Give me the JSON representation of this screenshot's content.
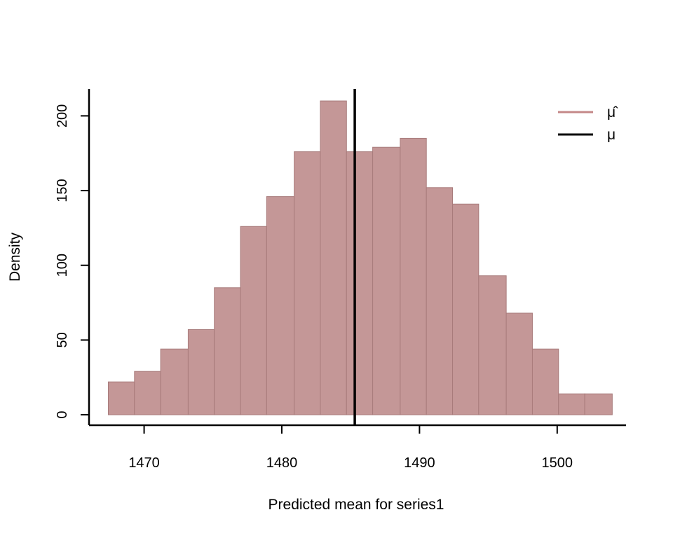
{
  "chart_data": {
    "type": "bar",
    "xlabel": "Predicted mean for series1",
    "ylabel": "Density",
    "xlim": [
      1466,
      1505
    ],
    "ylim": [
      -7,
      218
    ],
    "xticks": [
      1470,
      1480,
      1490,
      1500
    ],
    "yticks": [
      0,
      50,
      100,
      150,
      200
    ],
    "bin_edges": [
      1467.4,
      1469.3,
      1471.2,
      1473.2,
      1475.1,
      1477.0,
      1478.9,
      1480.9,
      1482.8,
      1484.7,
      1486.6,
      1488.6,
      1490.5,
      1492.4,
      1494.3,
      1496.3,
      1498.2,
      1500.1,
      1502.0,
      1504.0
    ],
    "values": [
      22,
      29,
      44,
      57,
      85,
      126,
      146,
      176,
      210,
      176,
      179,
      185,
      152,
      141,
      93,
      68,
      44,
      14,
      14
    ],
    "true_mean": 1485.3,
    "bar_color": "#c49797",
    "bar_edge": "#a87b7b",
    "line_color": "#000000",
    "grid": false,
    "legend_position": "top-right",
    "legend": [
      {
        "label": "μ̂",
        "color": "#c48888"
      },
      {
        "label": "μ",
        "color": "#000000"
      }
    ]
  }
}
